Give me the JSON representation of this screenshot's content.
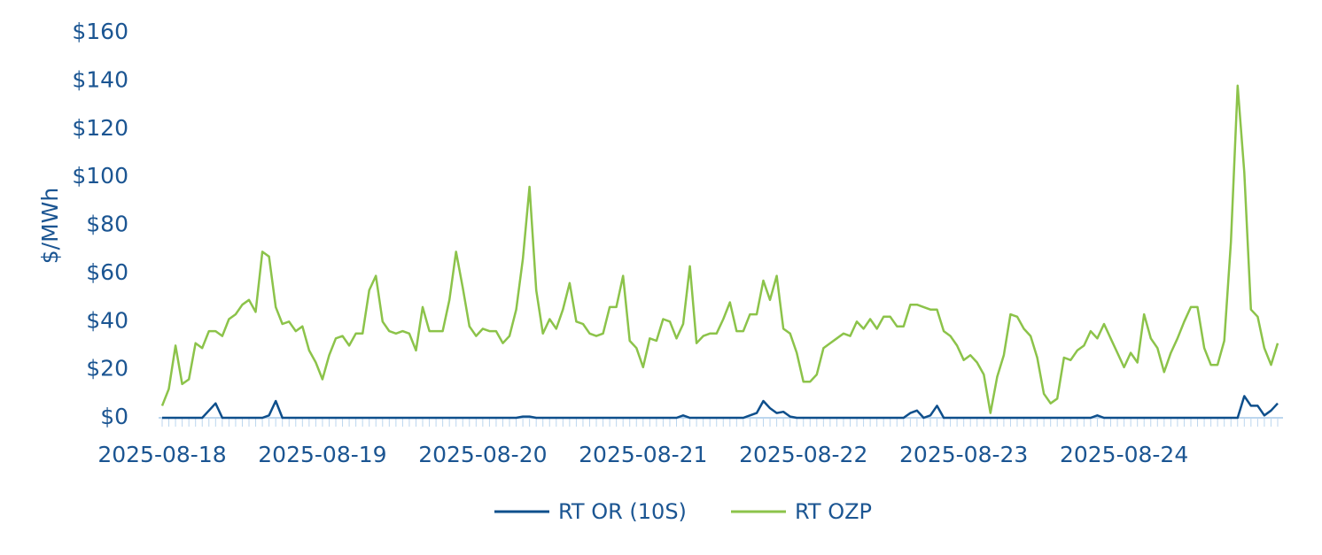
{
  "chart_data": {
    "type": "line",
    "y_label": "$/MWh",
    "categories": [
      "2025-08-18",
      null,
      null,
      null,
      null,
      null,
      null,
      null,
      null,
      null,
      null,
      null,
      null,
      null,
      null,
      null,
      null,
      null,
      null,
      null,
      null,
      null,
      null,
      null,
      "2025-08-19",
      null,
      null,
      null,
      null,
      null,
      null,
      null,
      null,
      null,
      null,
      null,
      null,
      null,
      null,
      null,
      null,
      null,
      null,
      null,
      null,
      null,
      null,
      null,
      "2025-08-20",
      null,
      null,
      null,
      null,
      null,
      null,
      null,
      null,
      null,
      null,
      null,
      null,
      null,
      null,
      null,
      null,
      null,
      null,
      null,
      null,
      null,
      null,
      null,
      "2025-08-21",
      null,
      null,
      null,
      null,
      null,
      null,
      null,
      null,
      null,
      null,
      null,
      null,
      null,
      null,
      null,
      null,
      null,
      null,
      null,
      null,
      null,
      null,
      null,
      "2025-08-22",
      null,
      null,
      null,
      null,
      null,
      null,
      null,
      null,
      null,
      null,
      null,
      null,
      null,
      null,
      null,
      null,
      null,
      null,
      null,
      null,
      null,
      null,
      null,
      "2025-08-23",
      null,
      null,
      null,
      null,
      null,
      null,
      null,
      null,
      null,
      null,
      null,
      null,
      null,
      null,
      null,
      null,
      null,
      null,
      null,
      null,
      null,
      null,
      null,
      "2025-08-24",
      null,
      null,
      null,
      null,
      null,
      null,
      null,
      null,
      null,
      null,
      null,
      null,
      null,
      null,
      null,
      null,
      null,
      null,
      null,
      null,
      null,
      null,
      null
    ],
    "series": [
      {
        "name": "RT OR (10S)",
        "color": "#0e4f8c",
        "values": [
          0,
          0,
          0,
          0,
          0,
          0,
          0,
          3,
          6,
          0,
          0,
          0,
          0,
          0,
          0,
          0,
          1,
          7,
          0,
          0,
          0,
          0,
          0,
          0,
          0,
          0,
          0,
          0,
          0,
          0,
          0,
          0,
          0,
          0,
          0,
          0,
          0,
          0,
          0,
          0,
          0,
          0,
          0,
          0,
          0,
          0,
          0,
          0,
          0,
          0,
          0,
          0,
          0,
          0,
          0.5,
          0.5,
          0,
          0,
          0,
          0,
          0,
          0,
          0,
          0,
          0,
          0,
          0,
          0,
          0,
          0,
          0,
          0,
          0,
          0,
          0,
          0,
          0,
          0,
          1,
          0,
          0,
          0,
          0,
          0,
          0,
          0,
          0,
          0,
          1,
          2,
          7,
          4,
          2,
          2.5,
          0.5,
          0,
          0,
          0,
          0,
          0,
          0,
          0,
          0,
          0,
          0,
          0,
          0,
          0,
          0,
          0,
          0,
          0,
          2,
          3,
          0,
          1,
          5,
          0,
          0,
          0,
          0,
          0,
          0,
          0,
          0,
          0,
          0,
          0,
          0,
          0,
          0,
          0,
          0,
          0,
          0,
          0,
          0,
          0,
          0,
          0,
          1,
          0,
          0,
          0,
          0,
          0,
          0,
          0,
          0,
          0,
          0,
          0,
          0,
          0,
          0,
          0,
          0,
          0,
          0,
          0,
          0,
          0,
          9,
          5,
          5,
          1,
          3,
          6
        ]
      },
      {
        "name": "RT OZP",
        "color": "#8cc34a",
        "values": [
          5,
          12,
          30,
          14,
          16,
          31,
          29,
          36,
          36,
          34,
          41,
          43,
          47,
          49,
          44,
          69,
          67,
          46,
          39,
          40,
          36,
          38,
          28,
          23,
          16,
          26,
          33,
          34,
          30,
          35,
          35,
          53,
          59,
          40,
          36,
          35,
          36,
          35,
          28,
          46,
          36,
          36,
          36,
          49,
          69,
          54,
          38,
          34,
          37,
          36,
          36,
          31,
          34,
          45,
          66,
          96,
          53,
          35,
          41,
          37,
          45,
          56,
          40,
          39,
          35,
          34,
          35,
          46,
          46,
          59,
          32,
          29,
          21,
          33,
          32,
          41,
          40,
          33,
          39,
          63,
          31,
          34,
          35,
          35,
          41,
          48,
          36,
          36,
          43,
          43,
          57,
          49,
          59,
          37,
          35,
          27,
          15,
          15,
          18,
          29,
          31,
          33,
          35,
          34,
          40,
          37,
          41,
          37,
          42,
          42,
          38,
          38,
          47,
          47,
          46,
          45,
          45,
          36,
          34,
          30,
          24,
          26,
          23,
          18,
          2,
          17,
          26,
          43,
          42,
          37,
          34,
          25,
          10,
          6,
          8,
          25,
          24,
          28,
          30,
          36,
          33,
          39,
          33,
          27,
          21,
          27,
          23,
          43,
          33,
          29,
          19,
          27,
          33,
          40,
          46,
          46,
          29,
          22,
          22,
          32,
          73,
          138,
          102,
          45,
          42,
          29,
          22,
          31
        ]
      }
    ],
    "ylim": [
      0,
      160
    ],
    "yticks": [
      {
        "value": 0,
        "label": "$0"
      },
      {
        "value": 20,
        "label": "$20"
      },
      {
        "value": 40,
        "label": "$40"
      },
      {
        "value": 60,
        "label": "$60"
      },
      {
        "value": 80,
        "label": "$80"
      },
      {
        "value": 100,
        "label": "$100"
      },
      {
        "value": 120,
        "label": "$120"
      },
      {
        "value": 140,
        "label": "$140"
      },
      {
        "value": 160,
        "label": "$160"
      }
    ],
    "grid": false,
    "legend": "bottom"
  }
}
